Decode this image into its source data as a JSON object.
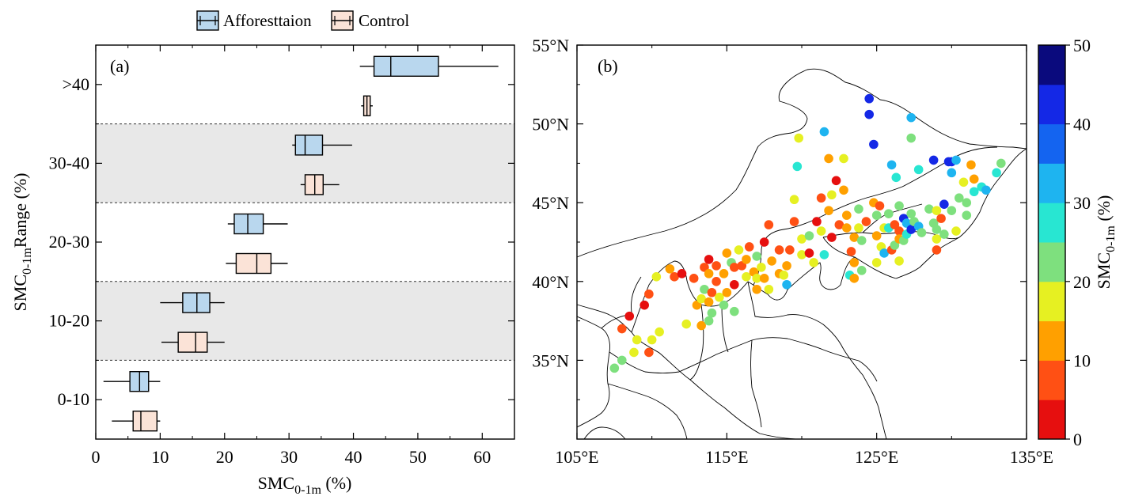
{
  "legend": {
    "items": [
      {
        "label": "Afforesttaion",
        "color": "#b9d7ee"
      },
      {
        "label": "Control",
        "color": "#fbe3d7"
      }
    ]
  },
  "panel_a": {
    "tag": "(a)",
    "ylabel": {
      "main": "SMC",
      "sub": "0-1m",
      "rest": "Range (%)"
    },
    "xlabel": {
      "main": "SMC",
      "sub": "0-1m",
      "rest": " (%)"
    },
    "xticks": [
      "0",
      "10",
      "20",
      "30",
      "40",
      "50",
      "60"
    ],
    "yticks": [
      ">40",
      "30-40",
      "20-30",
      "10-20",
      "0-10"
    ]
  },
  "panel_b": {
    "tag": "(b)",
    "lat_ticks": [
      "55°N",
      "50°N",
      "45°N",
      "40°N",
      "35°N"
    ],
    "lon_ticks": [
      "105°E",
      "115°E",
      "125°E",
      "135°E"
    ],
    "colorbar": {
      "label": {
        "main": "SMC",
        "sub": "0-1m",
        "rest": " (%)"
      },
      "ticks": [
        "0",
        "10",
        "20",
        "30",
        "40",
        "50"
      ],
      "colors": [
        "#e60f0f",
        "#ff5014",
        "#ffa000",
        "#e6f022",
        "#7ee07e",
        "#28e6d2",
        "#1eb4f0",
        "#1464f0",
        "#1428e6",
        "#0a0a7d"
      ]
    }
  },
  "chart_data": [
    {
      "type": "box",
      "orientation": "horizontal",
      "xlim": [
        0,
        65
      ],
      "categories": [
        ">40",
        "30-40",
        "20-30",
        "10-20",
        "0-10"
      ],
      "series": [
        {
          "name": "Afforesttaion",
          "boxes": [
            {
              "category": ">40",
              "min": 41,
              "q1": 43.2,
              "median": 45.8,
              "q3": 53.2,
              "max": 62.5
            },
            {
              "category": "30-40",
              "min": 30.5,
              "q1": 31,
              "median": 32.5,
              "q3": 35.2,
              "max": 39.8
            },
            {
              "category": "20-30",
              "min": 20.5,
              "q1": 21.5,
              "median": 23.6,
              "q3": 26,
              "max": 29.8
            },
            {
              "category": "10-20",
              "min": 10,
              "q1": 13.5,
              "median": 15.7,
              "q3": 17.7,
              "max": 20
            },
            {
              "category": "0-10",
              "min": 1.2,
              "q1": 5.3,
              "median": 6.8,
              "q3": 8.2,
              "max": 10
            }
          ]
        },
        {
          "name": "Control",
          "boxes": [
            {
              "category": ">40",
              "min": 41.2,
              "q1": 41.6,
              "median": 42.1,
              "q3": 42.6,
              "max": 43
            },
            {
              "category": "30-40",
              "min": 31.8,
              "q1": 32.5,
              "median": 34,
              "q3": 35.3,
              "max": 37.8
            },
            {
              "category": "20-30",
              "min": 20.2,
              "q1": 21.8,
              "median": 25,
              "q3": 27.2,
              "max": 29.8
            },
            {
              "category": "10-20",
              "min": 10.2,
              "q1": 12.8,
              "median": 15.5,
              "q3": 17.3,
              "max": 20
            },
            {
              "category": "0-10",
              "min": 2.5,
              "q1": 5.8,
              "median": 7,
              "q3": 9.5,
              "max": 10
            }
          ]
        }
      ]
    },
    {
      "type": "scatter",
      "lon_range": [
        105,
        135
      ],
      "lat_range": [
        30,
        55
      ],
      "color_range": [
        0,
        50
      ],
      "points": [
        [
          107.5,
          34.5,
          24
        ],
        [
          108,
          35,
          20
        ],
        [
          108,
          37,
          8
        ],
        [
          108.5,
          37.8,
          4
        ],
        [
          108.8,
          35.5,
          18
        ],
        [
          109,
          36.3,
          15
        ],
        [
          109.5,
          38.5,
          2
        ],
        [
          109.8,
          35.5,
          8
        ],
        [
          109.8,
          39.2,
          6
        ],
        [
          110,
          36.3,
          18
        ],
        [
          110.3,
          40.3,
          18
        ],
        [
          110.5,
          36.8,
          18
        ],
        [
          111.2,
          40.8,
          12
        ],
        [
          111.5,
          40.3,
          6
        ],
        [
          112,
          40.5,
          3
        ],
        [
          112.3,
          37.3,
          16
        ],
        [
          112.8,
          40.2,
          8
        ],
        [
          113,
          38.5,
          10
        ],
        [
          113.3,
          37.2,
          10
        ],
        [
          113.3,
          38.9,
          18
        ],
        [
          113.5,
          39.5,
          20
        ],
        [
          113.5,
          40.9,
          8
        ],
        [
          113.8,
          37.5,
          20
        ],
        [
          113.8,
          38.7,
          12
        ],
        [
          113.8,
          40.5,
          10
        ],
        [
          113.8,
          41.4,
          4
        ],
        [
          114,
          38,
          22
        ],
        [
          114,
          39.3,
          8
        ],
        [
          114.3,
          40,
          6
        ],
        [
          114.3,
          41,
          8
        ],
        [
          114.5,
          39,
          16
        ],
        [
          114.8,
          38.5,
          24
        ],
        [
          114.8,
          40.5,
          14
        ],
        [
          115,
          39.3,
          14
        ],
        [
          115,
          41.8,
          12
        ],
        [
          115.3,
          41.2,
          22
        ],
        [
          115.5,
          38.1,
          24
        ],
        [
          115.5,
          39.8,
          4
        ],
        [
          115.5,
          40.9,
          8
        ],
        [
          115.8,
          42,
          16
        ],
        [
          116,
          41,
          6
        ],
        [
          116.3,
          40.3,
          16
        ],
        [
          116.3,
          41.4,
          12
        ],
        [
          116.5,
          42.2,
          5
        ],
        [
          116.8,
          40.6,
          14
        ],
        [
          117,
          39.5,
          12
        ],
        [
          117,
          40.2,
          18
        ],
        [
          117,
          41.6,
          22
        ],
        [
          117.3,
          40.9,
          16
        ],
        [
          117.5,
          40.2,
          14
        ],
        [
          117.5,
          42.5,
          4
        ],
        [
          117.8,
          43.6,
          6
        ],
        [
          117.8,
          39.5,
          18
        ],
        [
          118,
          41.3,
          12
        ],
        [
          118.5,
          40.5,
          12
        ],
        [
          118.5,
          42,
          8
        ],
        [
          118.8,
          40.4,
          18
        ],
        [
          119,
          39.8,
          30
        ],
        [
          119,
          41,
          14
        ],
        [
          119.2,
          42,
          8
        ],
        [
          119.5,
          43.8,
          8
        ],
        [
          119.5,
          45.2,
          18
        ],
        [
          119.7,
          47.3,
          26
        ],
        [
          119.8,
          49.1,
          18
        ],
        [
          120,
          41.7,
          18
        ],
        [
          120,
          42.7,
          18
        ],
        [
          120.5,
          41.8,
          4
        ],
        [
          120.5,
          42.9,
          22
        ],
        [
          120.8,
          41.2,
          16
        ],
        [
          121,
          43.8,
          4
        ],
        [
          121.3,
          45.3,
          8
        ],
        [
          121.3,
          43.2,
          18
        ],
        [
          121.5,
          41.7,
          28
        ],
        [
          121.5,
          49.5,
          32
        ],
        [
          121.8,
          47.8,
          14
        ],
        [
          121.8,
          44.5,
          12
        ],
        [
          122,
          42.8,
          2
        ],
        [
          122,
          45.5,
          18
        ],
        [
          122.3,
          46.4,
          4
        ],
        [
          122.5,
          43.6,
          8
        ],
        [
          122.8,
          47.8,
          16
        ],
        [
          122.8,
          45.8,
          12
        ],
        [
          123,
          44.2,
          12
        ],
        [
          123,
          43.4,
          14
        ],
        [
          123.2,
          40.4,
          28
        ],
        [
          123.3,
          41.9,
          6
        ],
        [
          123.5,
          42.8,
          14
        ],
        [
          123.5,
          41.2,
          14
        ],
        [
          123.5,
          40.2,
          12
        ],
        [
          123.8,
          43.4,
          18
        ],
        [
          123.8,
          44.6,
          20
        ],
        [
          124,
          42.6,
          22
        ],
        [
          124,
          40.7,
          22
        ],
        [
          124.3,
          43.8,
          8
        ],
        [
          124.5,
          51.6,
          44
        ],
        [
          124.5,
          50.6,
          44
        ],
        [
          124.8,
          48.7,
          40
        ],
        [
          124.8,
          45,
          12
        ],
        [
          125,
          44.2,
          20
        ],
        [
          125,
          42.9,
          14
        ],
        [
          125,
          41.2,
          18
        ],
        [
          125.2,
          44.8,
          8
        ],
        [
          125.3,
          42.2,
          18
        ],
        [
          125.5,
          43.4,
          16
        ],
        [
          125.5,
          41.8,
          32
        ],
        [
          125.8,
          44.3,
          22
        ],
        [
          125.8,
          43.4,
          28
        ],
        [
          126,
          42,
          8
        ],
        [
          126,
          47.4,
          32
        ],
        [
          126.2,
          43.6,
          8
        ],
        [
          126.2,
          42.3,
          20
        ],
        [
          126.3,
          46.6,
          28
        ],
        [
          126.5,
          44.8,
          22
        ],
        [
          126.5,
          43.2,
          8
        ],
        [
          126.5,
          42.7,
          14
        ],
        [
          126.5,
          41.3,
          16
        ],
        [
          126.8,
          44,
          40
        ],
        [
          126.8,
          42.6,
          24
        ],
        [
          127,
          43.7,
          34
        ],
        [
          127,
          43,
          26
        ],
        [
          127.3,
          50.4,
          34
        ],
        [
          127.3,
          49.1,
          22
        ],
        [
          127.3,
          44.3,
          20
        ],
        [
          127.3,
          43.3,
          42
        ],
        [
          127.5,
          43.8,
          20
        ],
        [
          127.8,
          47.1,
          28
        ],
        [
          127.8,
          43.5,
          32
        ],
        [
          128,
          43.1,
          20
        ],
        [
          128.5,
          44.6,
          22
        ],
        [
          128.8,
          47.7,
          44
        ],
        [
          128.8,
          43.7,
          22
        ],
        [
          129,
          44.5,
          18
        ],
        [
          129,
          43.3,
          20
        ],
        [
          129,
          42,
          6
        ],
        [
          129,
          42.7,
          16
        ],
        [
          129.3,
          44,
          8
        ],
        [
          129.5,
          43,
          20
        ],
        [
          129.5,
          44.9,
          42
        ],
        [
          129.8,
          47.6,
          42
        ],
        [
          130,
          47.6,
          44
        ],
        [
          130,
          46.9,
          32
        ],
        [
          130,
          44.5,
          22
        ],
        [
          130.3,
          47.7,
          32
        ],
        [
          130.3,
          43.2,
          18
        ],
        [
          130.5,
          45.3,
          22
        ],
        [
          130.8,
          46.3,
          16
        ],
        [
          131,
          45,
          20
        ],
        [
          131,
          44.2,
          22
        ],
        [
          131.3,
          47.4,
          14
        ],
        [
          131.5,
          46.5,
          12
        ],
        [
          131.5,
          45.7,
          28
        ],
        [
          132,
          46,
          26
        ],
        [
          132.3,
          45.8,
          30
        ],
        [
          133,
          46.9,
          26
        ],
        [
          133.3,
          47.5,
          24
        ]
      ]
    }
  ]
}
